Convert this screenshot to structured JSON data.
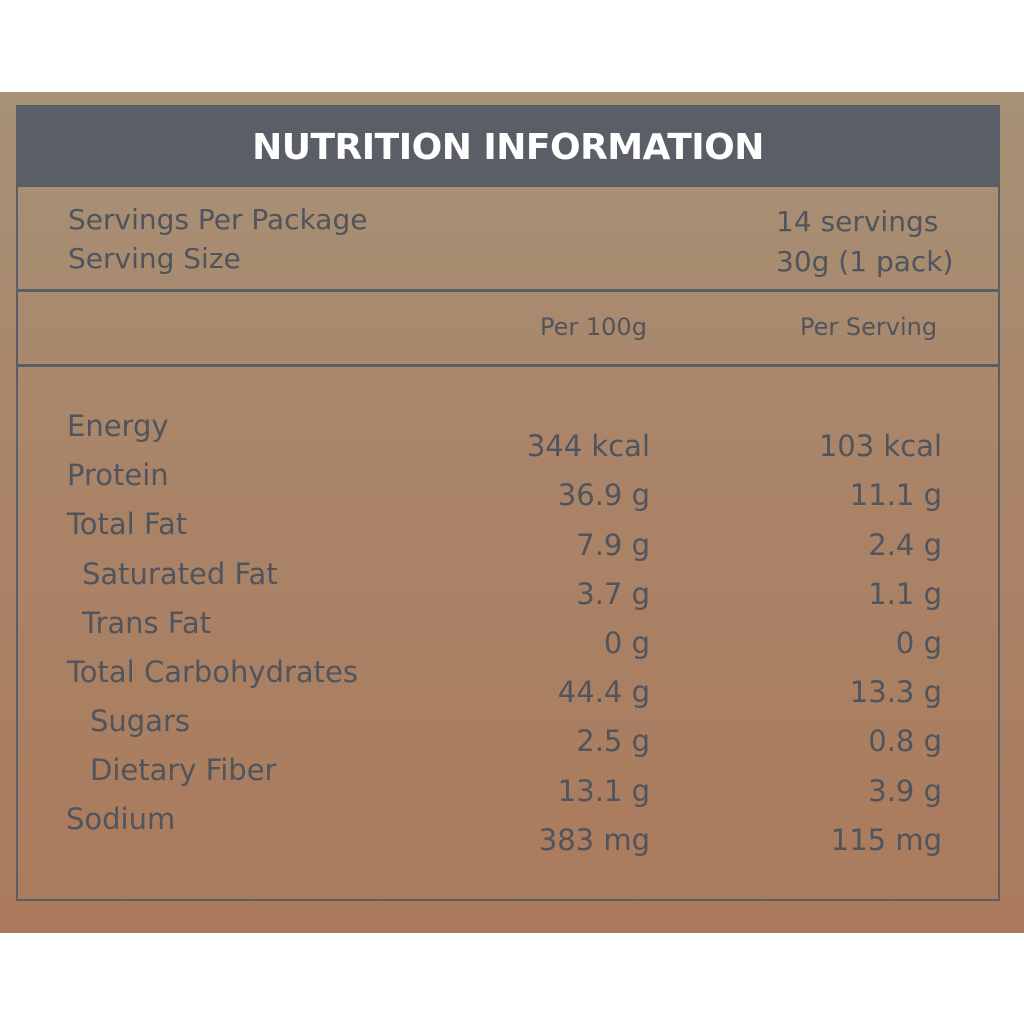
{
  "title": "NUTRITION INFORMATION",
  "servings": {
    "per_package_label": "Servings Per Package",
    "per_package_value": "14 servings",
    "size_label": "Serving Size",
    "size_value": "30g (1 pack)"
  },
  "columns": {
    "per_100g": "Per 100g",
    "per_serving": "Per Serving"
  },
  "nutrients": [
    {
      "name": "Energy",
      "per_100g": "344 kcal",
      "per_serving": "103 kcal"
    },
    {
      "name": "Protein",
      "per_100g": "36.9 g",
      "per_serving": "11.1  g"
    },
    {
      "name": "Total Fat",
      "per_100g": "7.9 g",
      "per_serving": "2.4  g"
    },
    {
      "name": "Saturated Fat",
      "per_100g": "3.7 g",
      "per_serving": "1.1  g"
    },
    {
      "name": "Trans Fat",
      "per_100g": "0 g",
      "per_serving": "0  g"
    },
    {
      "name": "Total Carbohydrates",
      "per_100g": "44.4 g",
      "per_serving": "13.3  g"
    },
    {
      "name": "Sugars",
      "per_100g": "2.5 g",
      "per_serving": "0.8  g"
    },
    {
      "name": "Dietary Fiber",
      "per_100g": "13.1 g",
      "per_serving": "3.9  g"
    },
    {
      "name": "Sodium",
      "per_100g": "383 mg",
      "per_serving": "115  mg"
    }
  ]
}
